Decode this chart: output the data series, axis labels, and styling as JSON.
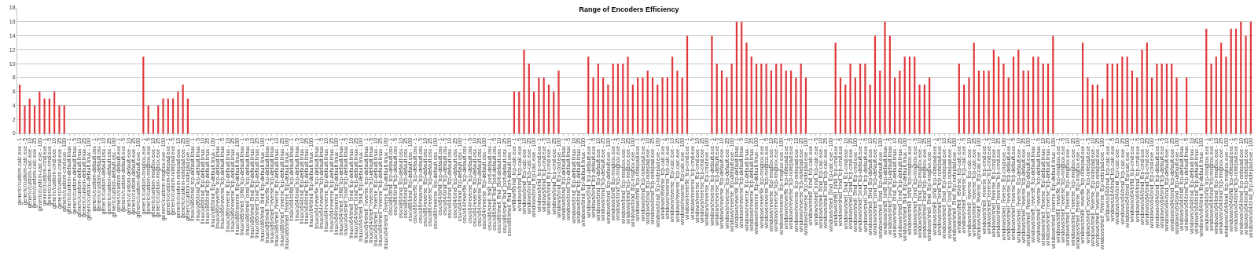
{
  "chart_data": {
    "type": "bar",
    "title": "Range of Encoders Efficiency",
    "categories": [
      "generic/custom-calc.exe - 1",
      "generic/custom-calc.exe - 5",
      "generic/custom-calc.exe - 10",
      "generic/custom-calc.exe - 25",
      "generic/custom-calc.exe - 100",
      "generic/custom-cmd.exe - 1",
      "generic/custom-cmd.exe - 5",
      "generic/custom-cmd.exe - 10",
      "generic/custom-cmd.exe - 25",
      "generic/custom-cmd.exe - 100",
      "generic/custom-default.linux - 1",
      "generic/custom-default.linux - 5",
      "generic/custom-default.linux - 10",
      "generic/custom-default.linux - 25",
      "generic/custom-default.linux - 100",
      "generic/custom-default.osx - 1",
      "generic/custom-default.osx - 5",
      "generic/custom-default.osx - 10",
      "generic/custom-default.osx - 25",
      "generic/custom-default.osx - 100",
      "generic/custom-default.exe - 1",
      "generic/custom-default.exe - 5",
      "generic/custom-default.exe - 10",
      "generic/custom-default.exe - 25",
      "generic/custom-default.exe - 100",
      "generic/custom-msgbox.exe - 1",
      "generic/custom-msgbox.exe - 5",
      "generic/custom-msgbox.exe - 10",
      "generic/custom-msgbox.exe - 25",
      "generic/custom-msgbox.exe - 100",
      "generic/custom-notepad.exe - 1",
      "generic/custom-notepad.exe - 5",
      "generic/custom-notepad.exe - 10",
      "generic/custom-notepad.exe - 25",
      "generic/custom-notepad.exe - 100",
      "linux/x86/bind_tcp-default.linux - 1",
      "linux/x86/bind_tcp-default.linux - 5",
      "linux/x86/bind_tcp-default.linux - 10",
      "linux/x86/bind_tcp-default.linux - 25",
      "linux/x86/bind_tcp-default.linux - 100",
      "linux/x86/reverse_tcp-default.linux - 1",
      "linux/x86/reverse_tcp-default.linux - 5",
      "linux/x86/reverse_tcp-default.linux - 10",
      "linux/x86/reverse_tcp-default.linux - 25",
      "linux/x86/reverse_tcp-default.linux - 100",
      "linux/x86/shell_bind_tcp-default.linux - 1",
      "linux/x86/shell_bind_tcp-default.linux - 5",
      "linux/x86/shell_bind_tcp-default.linux - 10",
      "linux/x86/shell_bind_tcp-default.linux - 25",
      "linux/x86/shell_bind_tcp-default.linux - 100",
      "linux/x86/shell_reverse_tcp-default.linux - 1",
      "linux/x86/shell_reverse_tcp-default.linux - 5",
      "linux/x86/shell_reverse_tcp-default.linux - 10",
      "linux/x86/shell_reverse_tcp-default.linux - 25",
      "linux/x86/shell_reverse_tcp-default.linux - 100",
      "linux/x64/bind_tcp-default.linux - 1",
      "linux/x64/bind_tcp-default.linux - 5",
      "linux/x64/bind_tcp-default.linux - 10",
      "linux/x64/bind_tcp-default.linux - 25",
      "linux/x64/bind_tcp-default.linux - 100",
      "linux/x64/reverse_tcp-default.linux - 1",
      "linux/x64/reverse_tcp-default.linux - 5",
      "linux/x64/reverse_tcp-default.linux - 10",
      "linux/x64/reverse_tcp-default.linux - 25",
      "linux/x64/reverse_tcp-default.linux - 100",
      "linux/x64/shell_bind_tcp-default.linux - 1",
      "linux/x64/shell_bind_tcp-default.linux - 5",
      "linux/x64/shell_bind_tcp-default.linux - 10",
      "linux/x64/shell_bind_tcp-default.linux - 25",
      "linux/x64/shell_bind_tcp-default.linux - 100",
      "linux/x64/shell_reverse_tcp-default.linux - 1",
      "linux/x64/shell_reverse_tcp-default.linux - 5",
      "linux/x64/shell_reverse_tcp-default.linux - 10",
      "linux/x64/shell_reverse_tcp-default.linux - 25",
      "linux/x64/shell_reverse_tcp-default.linux - 100",
      "osx/x86/bind_tcp-default.osx - 1",
      "osx/x86/bind_tcp-default.osx - 5",
      "osx/x86/bind_tcp-default.osx - 10",
      "osx/x86/bind_tcp-default.osx - 25",
      "osx/x86/bind_tcp-default.osx - 100",
      "osx/x86/reverse_tcp-default.osx - 1",
      "osx/x86/reverse_tcp-default.osx - 5",
      "osx/x86/reverse_tcp-default.osx - 10",
      "osx/x86/reverse_tcp-default.osx - 25",
      "osx/x86/reverse_tcp-default.osx - 100",
      "osx/x64/bind_tcp-default.osx - 1",
      "osx/x64/bind_tcp-default.osx - 5",
      "osx/x64/bind_tcp-default.osx - 10",
      "osx/x64/bind_tcp-default.osx - 25",
      "osx/x64/bind_tcp-default.osx - 100",
      "osx/x64/reverse_tcp-default.osx - 1",
      "osx/x64/reverse_tcp-default.osx - 5",
      "osx/x64/reverse_tcp-default.osx - 10",
      "osx/x64/reverse_tcp-default.osx - 25",
      "osx/x64/reverse_tcp-default.osx - 100",
      "osx/x86/shell_find_port-default.osx - 1",
      "osx/x86/shell_find_port-default.osx - 5",
      "osx/x86/shell_find_port-default.osx - 10",
      "osx/x86/shell_find_port-default.osx - 25",
      "osx/x86/shell_find_port-default.osx - 100",
      "windows/bind_tcp-calc.exe - 1",
      "windows/bind_tcp-calc.exe - 5",
      "windows/bind_tcp-calc.exe - 10",
      "windows/bind_tcp-calc.exe - 25",
      "windows/bind_tcp-calc.exe - 100",
      "windows/bind_tcp-cmd.exe - 1",
      "windows/bind_tcp-cmd.exe - 5",
      "windows/bind_tcp-cmd.exe - 10",
      "windows/bind_tcp-cmd.exe - 25",
      "windows/bind_tcp-cmd.exe - 100",
      "windows/bind_tcp-default.linux - 1",
      "windows/bind_tcp-default.linux - 5",
      "windows/bind_tcp-default.linux - 10",
      "windows/bind_tcp-default.linux - 25",
      "windows/bind_tcp-default.linux - 100",
      "windows/bind_tcp-default.exe - 1",
      "windows/bind_tcp-default.exe - 5",
      "windows/bind_tcp-default.exe - 10",
      "windows/bind_tcp-default.exe - 25",
      "windows/bind_tcp-default.exe - 100",
      "windows/bind_tcp-msgbox.exe - 1",
      "windows/bind_tcp-msgbox.exe - 5",
      "windows/bind_tcp-msgbox.exe - 10",
      "windows/bind_tcp-msgbox.exe - 25",
      "windows/bind_tcp-msgbox.exe - 100",
      "windows/bind_tcp-notepad.exe - 1",
      "windows/bind_tcp-notepad.exe - 5",
      "windows/bind_tcp-notepad.exe - 10",
      "windows/bind_tcp-notepad.exe - 25",
      "windows/bind_tcp-notepad.exe - 100",
      "windows/reverse_tcp-calc.exe - 1",
      "windows/reverse_tcp-calc.exe - 5",
      "windows/reverse_tcp-calc.exe - 10",
      "windows/reverse_tcp-calc.exe - 25",
      "windows/reverse_tcp-calc.exe - 100",
      "windows/reverse_tcp-cmd.exe - 1",
      "windows/reverse_tcp-cmd.exe - 5",
      "windows/reverse_tcp-cmd.exe - 10",
      "windows/reverse_tcp-cmd.exe - 25",
      "windows/reverse_tcp-cmd.exe - 100",
      "windows/reverse_tcp-default.exe - 1",
      "windows/reverse_tcp-default.exe - 5",
      "windows/reverse_tcp-default.exe - 10",
      "windows/reverse_tcp-default.exe - 25",
      "windows/reverse_tcp-default.exe - 100",
      "windows/reverse_tcp-default.linux - 1",
      "windows/reverse_tcp-default.linux - 5",
      "windows/reverse_tcp-default.linux - 10",
      "windows/reverse_tcp-default.linux - 25",
      "windows/reverse_tcp-default.linux - 100",
      "windows/reverse_tcp-msgbox.exe - 1",
      "windows/reverse_tcp-msgbox.exe - 5",
      "windows/reverse_tcp-msgbox.exe - 10",
      "windows/reverse_tcp-msgbox.exe - 25",
      "windows/reverse_tcp-msgbox.exe - 100",
      "windows/reverse_tcp-notepad.exe - 1",
      "windows/reverse_tcp-notepad.exe - 5",
      "windows/reverse_tcp-notepad.exe - 10",
      "windows/reverse_tcp-notepad.exe - 25",
      "windows/reverse_tcp-notepad.exe - 100",
      "windows/shell_bind_tcp-calc.exe - 1",
      "windows/shell_bind_tcp-calc.exe - 5",
      "windows/shell_bind_tcp-calc.exe - 10",
      "windows/shell_bind_tcp-calc.exe - 25",
      "windows/shell_bind_tcp-calc.exe - 100",
      "windows/shell_bind_tcp-cmd.exe - 1",
      "windows/shell_bind_tcp-cmd.exe - 5",
      "windows/shell_bind_tcp-cmd.exe - 10",
      "windows/shell_bind_tcp-cmd.exe - 25",
      "windows/shell_bind_tcp-cmd.exe - 100",
      "windows/shell_bind_tcp-default.exe - 1",
      "windows/shell_bind_tcp-default.exe - 5",
      "windows/shell_bind_tcp-default.exe - 10",
      "windows/shell_bind_tcp-default.exe - 25",
      "windows/shell_bind_tcp-default.exe - 100",
      "windows/shell_bind_tcp-default.linux - 1",
      "windows/shell_bind_tcp-default.linux - 5",
      "windows/shell_bind_tcp-default.linux - 10",
      "windows/shell_bind_tcp-default.linux - 25",
      "windows/shell_bind_tcp-default.linux - 100",
      "windows/shell_bind_tcp-msgbox.exe - 1",
      "windows/shell_bind_tcp-msgbox.exe - 5",
      "windows/shell_bind_tcp-msgbox.exe - 10",
      "windows/shell_bind_tcp-msgbox.exe - 25",
      "windows/shell_bind_tcp-msgbox.exe - 100",
      "windows/shell_bind_tcp-notepad.exe - 1",
      "windows/shell_bind_tcp-notepad.exe - 5",
      "windows/shell_bind_tcp-notepad.exe - 10",
      "windows/shell_bind_tcp-notepad.exe - 25",
      "windows/shell_bind_tcp-notepad.exe - 100",
      "windows/shell_reverse_tcp-calc.exe - 1",
      "windows/shell_reverse_tcp-calc.exe - 5",
      "windows/shell_reverse_tcp-calc.exe - 10",
      "windows/shell_reverse_tcp-calc.exe - 25",
      "windows/shell_reverse_tcp-calc.exe - 100",
      "windows/shell_reverse_tcp-cmd.exe - 1",
      "windows/shell_reverse_tcp-cmd.exe - 5",
      "windows/shell_reverse_tcp-cmd.exe - 10",
      "windows/shell_reverse_tcp-cmd.exe - 25",
      "windows/shell_reverse_tcp-cmd.exe - 100",
      "windows/shell_reverse_tcp-default.exe - 1",
      "windows/shell_reverse_tcp-default.exe - 5",
      "windows/shell_reverse_tcp-default.exe - 10",
      "windows/shell_reverse_tcp-default.exe - 25",
      "windows/shell_reverse_tcp-default.exe - 100",
      "windows/shell_reverse_tcp-default.linux - 1",
      "windows/shell_reverse_tcp-default.linux - 5",
      "windows/shell_reverse_tcp-default.linux - 10",
      "windows/shell_reverse_tcp-default.linux - 25",
      "windows/shell_reverse_tcp-default.linux - 100",
      "windows/shell_reverse_tcp-msgbox.exe - 1",
      "windows/shell_reverse_tcp-msgbox.exe - 5",
      "windows/shell_reverse_tcp-msgbox.exe - 10",
      "windows/shell_reverse_tcp-msgbox.exe - 25",
      "windows/shell_reverse_tcp-msgbox.exe - 100",
      "windows/shell_reverse_tcp-notepad.exe - 1",
      "windows/shell_reverse_tcp-notepad.exe - 5",
      "windows/shell_reverse_tcp-notepad.exe - 10",
      "windows/shell_reverse_tcp-notepad.exe - 25",
      "windows/shell_reverse_tcp-notepad.exe - 100",
      "windows/x64/bind_tcp-calc.exe - 1",
      "windows/x64/bind_tcp-calc.exe - 5",
      "windows/x64/bind_tcp-calc.exe - 10",
      "windows/x64/bind_tcp-calc.exe - 25",
      "windows/x64/bind_tcp-calc.exe - 100",
      "windows/x64/bind_tcp-cmd.exe - 1",
      "windows/x64/bind_tcp-cmd.exe - 5",
      "windows/x64/bind_tcp-cmd.exe - 10",
      "windows/x64/bind_tcp-cmd.exe - 25",
      "windows/x64/bind_tcp-cmd.exe - 100",
      "windows/x64/bind_tcp-default.exe - 1",
      "windows/x64/bind_tcp-default.exe - 5",
      "windows/x64/bind_tcp-default.exe - 10",
      "windows/x64/bind_tcp-default.exe - 25",
      "windows/x64/bind_tcp-default.exe - 100",
      "windows/x64/bind_tcp-default.linux - 1",
      "windows/x64/bind_tcp-default.linux - 5",
      "windows/x64/bind_tcp-default.linux - 10",
      "windows/x64/bind_tcp-default.linux - 25",
      "windows/x64/bind_tcp-default.linux - 100",
      "windows/x64/bind_tcp-msgbox.exe - 1",
      "windows/x64/bind_tcp-msgbox.exe - 5",
      "windows/x64/bind_tcp-msgbox.exe - 10",
      "windows/x64/bind_tcp-msgbox.exe - 25",
      "windows/x64/bind_tcp-msgbox.exe - 100",
      "windows/x64/bind_tcp-notepad.exe - 1",
      "windows/x64/bind_tcp-notepad.exe - 5",
      "windows/x64/bind_tcp-notepad.exe - 10",
      "windows/x64/bind_tcp-notepad.exe - 25",
      "windows/x64/bind_tcp-notepad.exe - 100"
    ],
    "values": [
      7,
      4,
      5,
      4,
      6,
      5,
      5,
      6,
      4,
      4,
      null,
      null,
      null,
      null,
      null,
      null,
      null,
      null,
      null,
      null,
      null,
      null,
      null,
      null,
      null,
      11,
      4,
      2,
      4,
      5,
      5,
      5,
      6,
      7,
      5,
      null,
      null,
      null,
      null,
      null,
      null,
      null,
      null,
      null,
      null,
      null,
      null,
      null,
      null,
      null,
      null,
      null,
      null,
      null,
      null,
      null,
      null,
      null,
      null,
      null,
      null,
      null,
      null,
      null,
      null,
      null,
      null,
      null,
      null,
      null,
      null,
      null,
      null,
      null,
      null,
      null,
      null,
      null,
      null,
      null,
      null,
      null,
      null,
      null,
      null,
      null,
      null,
      null,
      null,
      null,
      null,
      null,
      null,
      null,
      null,
      null,
      null,
      null,
      null,
      null,
      6,
      6,
      12,
      10,
      6,
      8,
      8,
      7,
      6,
      9,
      null,
      null,
      null,
      null,
      null,
      11,
      8,
      10,
      8,
      7,
      10,
      10,
      10,
      11,
      7,
      8,
      8,
      9,
      8,
      7,
      8,
      8,
      11,
      9,
      8,
      14,
      null,
      null,
      null,
      null,
      14,
      10,
      9,
      8,
      10,
      16,
      16,
      13,
      11,
      10,
      10,
      10,
      9,
      10,
      10,
      9,
      9,
      8,
      10,
      8,
      null,
      null,
      null,
      null,
      null,
      13,
      8,
      7,
      10,
      8,
      10,
      10,
      7,
      14,
      9,
      16,
      14,
      8,
      9,
      11,
      11,
      11,
      7,
      7,
      8,
      null,
      null,
      null,
      null,
      null,
      10,
      7,
      8,
      13,
      9,
      9,
      9,
      12,
      11,
      10,
      8,
      11,
      12,
      9,
      9,
      11,
      11,
      10,
      10,
      14,
      null,
      null,
      null,
      null,
      null,
      13,
      8,
      7,
      7,
      5,
      10,
      10,
      10,
      11,
      11,
      9,
      8,
      12,
      13,
      8,
      10,
      10,
      10,
      10,
      8,
      null,
      8,
      null,
      null,
      null,
      15,
      10,
      11,
      13,
      11,
      15,
      15,
      16,
      14,
      16
    ],
    "color": "#e0393c",
    "ylim": [
      0,
      18
    ],
    "yticks": [
      0,
      2,
      4,
      6,
      8,
      10,
      12,
      14,
      16,
      18
    ],
    "grid": "y"
  }
}
